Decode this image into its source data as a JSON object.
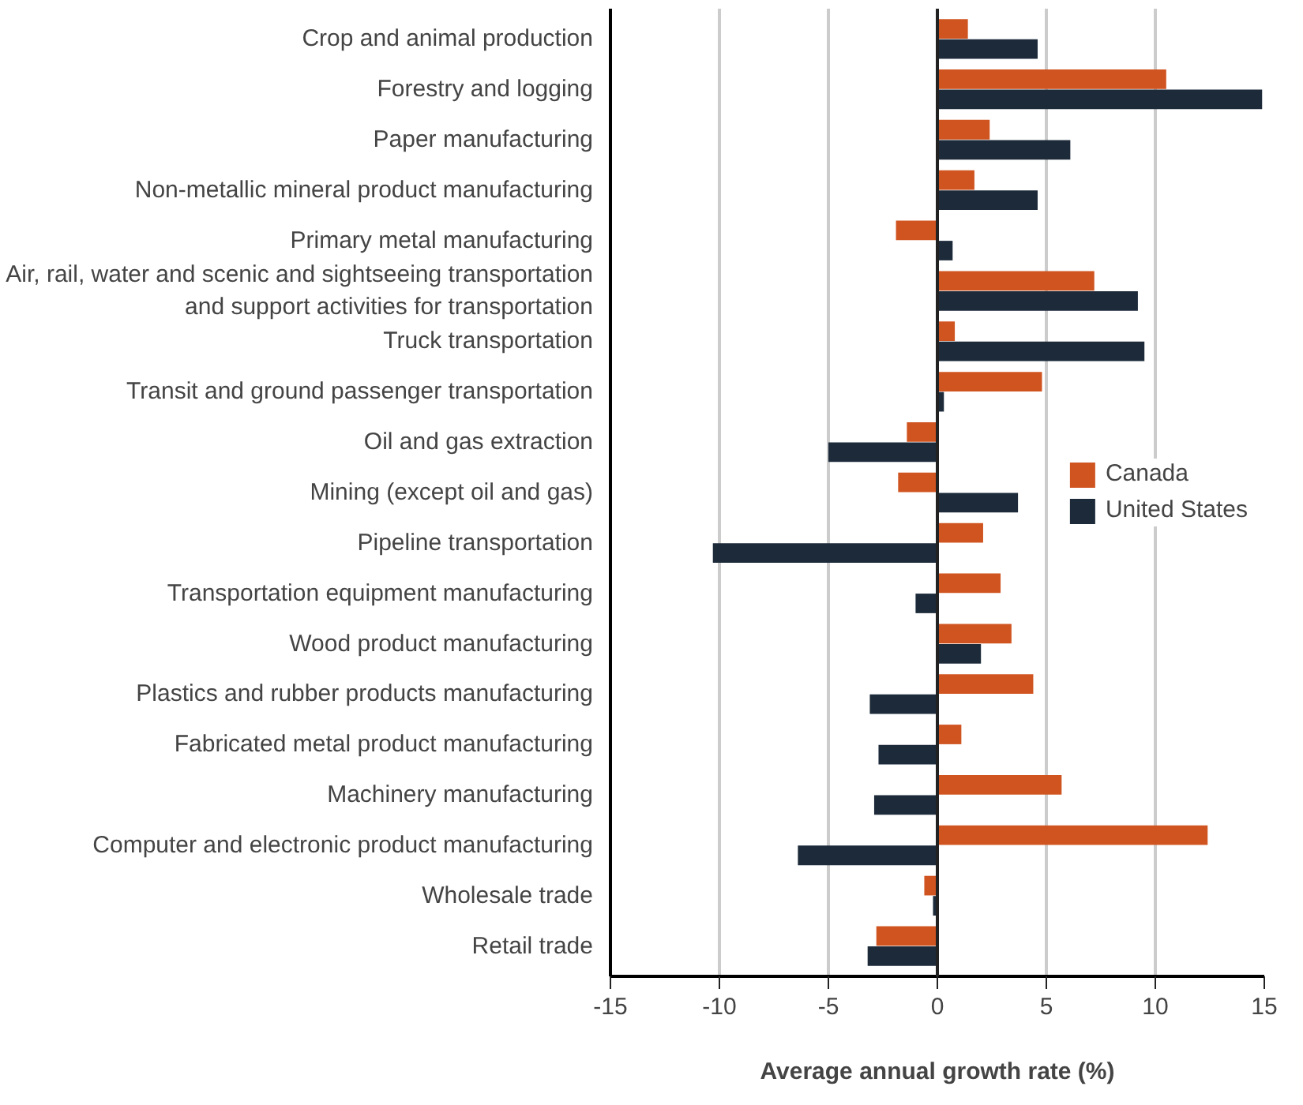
{
  "chart_data": {
    "type": "bar",
    "orientation": "horizontal",
    "xlabel": "Average annual growth rate (%)",
    "categories": [
      "Crop and animal production",
      "Forestry and logging",
      "Paper manufacturing",
      "Non-metallic mineral product manufacturing",
      "Primary metal manufacturing",
      "Air, rail, water and scenic and sightseeing transportation and support activities for transportation",
      "Truck transportation",
      "Transit and ground passenger transportation",
      "Oil and gas extraction",
      "Mining (except oil and gas)",
      "Pipeline transportation",
      "Transportation equipment manufacturing",
      "Wood product manufacturing",
      "Plastics and rubber products manufacturing",
      "Fabricated metal product manufacturing",
      "Machinery manufacturing",
      "Computer and electronic product manufacturing",
      "Wholesale trade",
      "Retail trade"
    ],
    "series": [
      {
        "name": "Canada",
        "color": "#d05420",
        "values": [
          1.4,
          10.5,
          2.4,
          1.7,
          -1.9,
          7.2,
          0.8,
          4.8,
          -1.4,
          -1.8,
          2.1,
          2.9,
          3.4,
          4.4,
          1.1,
          5.7,
          12.4,
          -0.6,
          -2.8
        ]
      },
      {
        "name": "United States",
        "color": "#1c2a3a",
        "values": [
          4.6,
          14.9,
          6.1,
          4.6,
          0.7,
          9.2,
          9.5,
          0.3,
          -5.0,
          3.7,
          -10.3,
          -1.0,
          2.0,
          -3.1,
          -2.7,
          -2.9,
          -6.4,
          -0.2,
          -3.2
        ]
      }
    ],
    "xlim": [
      -15,
      15
    ],
    "xticks": [
      -15,
      -10,
      -5,
      0,
      5,
      10,
      15
    ],
    "grid": "x",
    "legend": "right",
    "ref_lines": [
      {
        "axis": "x",
        "value": 0,
        "color": "#222222"
      }
    ]
  }
}
